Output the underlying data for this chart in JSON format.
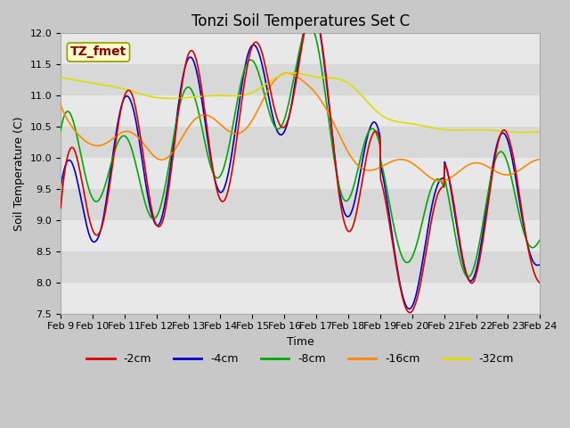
{
  "title": "Tonzi Soil Temperatures Set C",
  "xlabel": "Time",
  "ylabel": "Soil Temperature (C)",
  "ylim": [
    7.5,
    12.0
  ],
  "yticks": [
    7.5,
    8.0,
    8.5,
    9.0,
    9.5,
    10.0,
    10.5,
    11.0,
    11.5,
    12.0
  ],
  "fig_bg_color": "#c8c8c8",
  "plot_bg_color": "#e0e0e0",
  "stripe_color1": "#e8e8e8",
  "stripe_color2": "#d8d8d8",
  "legend_label": "TZ_fmet",
  "legend_text_color": "#8b0000",
  "legend_box_facecolor": "#ffffcc",
  "legend_box_edgecolor": "#999900",
  "x_tick_labels": [
    "Feb 9",
    "Feb 10",
    "Feb 11",
    "Feb 12",
    "Feb 13",
    "Feb 14",
    "Feb 15",
    "Feb 16",
    "Feb 17",
    "Feb 18",
    "Feb 19",
    "Feb 20",
    "Feb 21",
    "Feb 22",
    "Feb 23",
    "Feb 24"
  ],
  "series_labels": [
    "-2cm",
    "-4cm",
    "-8cm",
    "-16cm",
    "-32cm"
  ],
  "series_colors": [
    "#dd0000",
    "#0000cc",
    "#00aa00",
    "#ff8800",
    "#dddd00"
  ],
  "line_width": 1.2,
  "title_fontsize": 12,
  "axis_label_fontsize": 9,
  "tick_fontsize": 8,
  "n_points": 720
}
